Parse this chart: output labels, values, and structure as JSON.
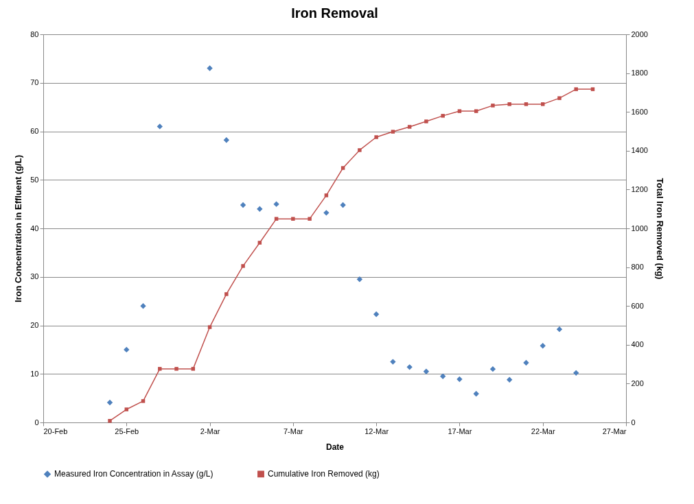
{
  "chart_data": {
    "type": "scatter",
    "title": "Iron Removal",
    "xlabel": "Date",
    "ylabel": "Iron Concentration in Effluent (g/L)",
    "y2label": "Total Iron Removed (kg)",
    "xlim": [
      "--02-20",
      "--03-27"
    ],
    "xticks": [
      {
        "value": "--02-20",
        "label": "20-Feb"
      },
      {
        "value": "--02-25",
        "label": "25-Feb"
      },
      {
        "value": "--03-02",
        "label": "2-Mar"
      },
      {
        "value": "--03-07",
        "label": "7-Mar"
      },
      {
        "value": "--03-12",
        "label": "12-Mar"
      },
      {
        "value": "--03-17",
        "label": "17-Mar"
      },
      {
        "value": "--03-22",
        "label": "22-Mar"
      },
      {
        "value": "--03-27",
        "label": "27-Mar"
      }
    ],
    "ylim": [
      0,
      80
    ],
    "yticks": [
      0,
      10,
      20,
      30,
      40,
      50,
      60,
      70,
      80
    ],
    "y2lim": [
      0,
      2000
    ],
    "y2ticks": [
      0,
      200,
      400,
      600,
      800,
      1000,
      1200,
      1400,
      1600,
      1800,
      2000
    ],
    "grid": "y",
    "legend": "bottom",
    "series": [
      {
        "name": "Measured Iron Concentration in Assay (g/L)",
        "marker": "diamond",
        "color": "#4f81bd",
        "x": [
          "--02-24",
          "--02-25",
          "--02-26",
          "--02-27",
          "--03-02",
          "--03-03",
          "--03-04",
          "--03-05",
          "--03-06",
          "--03-09",
          "--03-10",
          "--03-11",
          "--03-12",
          "--03-13",
          "--03-14",
          "--03-15",
          "--03-16",
          "--03-17",
          "--03-18",
          "--03-19",
          "--03-20",
          "--03-21",
          "--03-22",
          "--03-23",
          "--03-24"
        ],
        "values": [
          4.1,
          15,
          24,
          61,
          73,
          58.2,
          44.8,
          44,
          45,
          43.2,
          44.8,
          29.5,
          22.3,
          12.5,
          11.4,
          10.5,
          9.5,
          8.9,
          5.9,
          11,
          8.8,
          12.3,
          15.8,
          19.2,
          10.2
        ]
      },
      {
        "name": "Cumulative Iron Removed (kg)",
        "type": "line",
        "marker": "square",
        "line_style": "solid",
        "axis": "y2",
        "color": "#c0504d",
        "x": [
          "--02-24",
          "--02-25",
          "--02-26",
          "--02-27",
          "--02-28",
          "--03-01",
          "--03-02",
          "--03-03",
          "--03-04",
          "--03-05",
          "--03-06",
          "--03-07",
          "--03-08",
          "--03-09",
          "--03-10",
          "--03-11",
          "--03-12",
          "--03-13",
          "--03-14",
          "--03-15",
          "--03-16",
          "--03-17",
          "--03-18",
          "--03-19",
          "--03-20",
          "--03-21",
          "--03-22",
          "--03-23",
          "--03-24",
          "--03-25"
        ],
        "values": [
          8,
          67,
          110,
          276,
          276,
          276,
          491,
          661,
          806,
          926,
          1049,
          1049,
          1049,
          1170,
          1311,
          1403,
          1470,
          1498,
          1523,
          1551,
          1580,
          1604,
          1604,
          1633,
          1640,
          1640,
          1640,
          1671,
          1717,
          1717
        ]
      }
    ]
  }
}
